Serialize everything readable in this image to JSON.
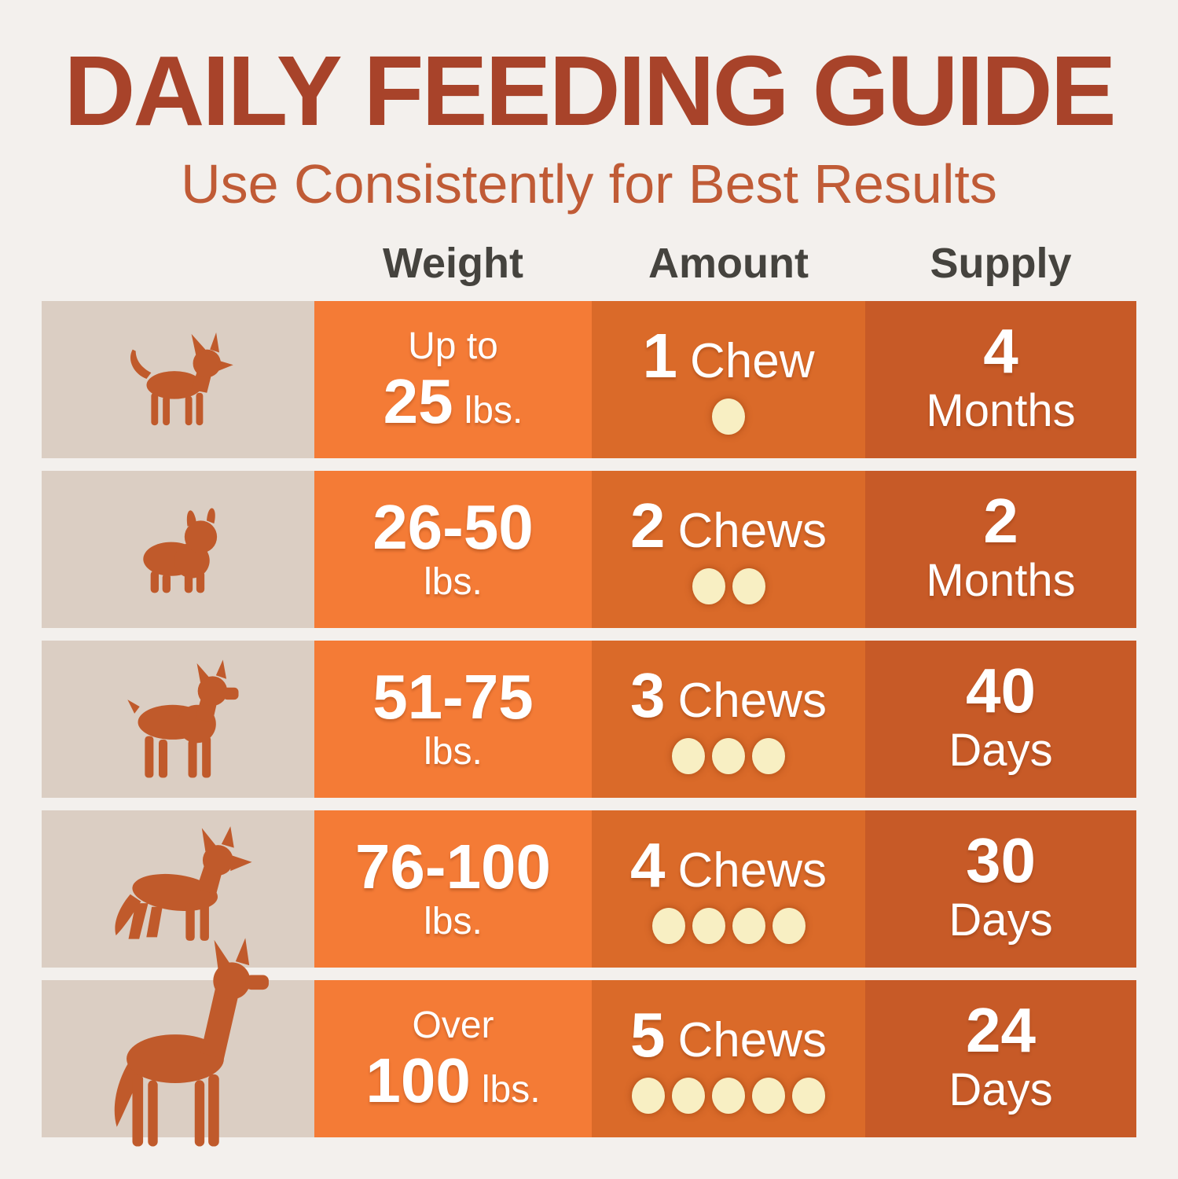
{
  "title": "DAILY FEEDING GUIDE",
  "subtitle": "Use Consistently for Best Results",
  "columns": {
    "weight": "Weight",
    "amount": "Amount",
    "supply": "Supply"
  },
  "rows": [
    {
      "dog": "chihuahua",
      "weight": {
        "pre": "Up to",
        "big": "25",
        "post": "lbs."
      },
      "amount": {
        "count": "1",
        "unit": "Chew",
        "dots": 1
      },
      "supply": {
        "value": "4",
        "unit": "Months"
      }
    },
    {
      "dog": "french-bulldog",
      "weight": {
        "big": "26-50",
        "post": "lbs."
      },
      "amount": {
        "count": "2",
        "unit": "Chews",
        "dots": 2
      },
      "supply": {
        "value": "2",
        "unit": "Months"
      }
    },
    {
      "dog": "boxer",
      "weight": {
        "big": "51-75",
        "post": "lbs."
      },
      "amount": {
        "count": "3",
        "unit": "Chews",
        "dots": 3
      },
      "supply": {
        "value": "40",
        "unit": "Days"
      }
    },
    {
      "dog": "german-shepherd",
      "weight": {
        "big": "76-100",
        "post": "lbs."
      },
      "amount": {
        "count": "4",
        "unit": "Chews",
        "dots": 4
      },
      "supply": {
        "value": "30",
        "unit": "Days"
      }
    },
    {
      "dog": "great-dane",
      "weight": {
        "pre": "Over",
        "big": "100",
        "post": "lbs."
      },
      "amount": {
        "count": "5",
        "unit": "Chews",
        "dots": 5
      },
      "supply": {
        "value": "24",
        "unit": "Days"
      }
    }
  ],
  "colors": {
    "page_bg": "#F3F0ED",
    "title": "#A8432A",
    "subtitle": "#C05B36",
    "header_text": "#45433E",
    "dog_cell_bg": "#DBCEC3",
    "dog": "#C05A2B",
    "weight_col": "#F47B36",
    "amount_col": "#DA6A29",
    "supply_col": "#C75A27",
    "dot": "#F8EFC3",
    "cell_text": "#FFFFFF"
  },
  "chart_data": {
    "type": "table",
    "title": "DAILY FEEDING GUIDE",
    "subtitle": "Use Consistently for Best Results",
    "columns": [
      "Weight",
      "Amount",
      "Supply"
    ],
    "rows": [
      {
        "dog": "chihuahua",
        "weight": "Up to 25 lbs.",
        "amount_chews": 1,
        "amount_label": "1 Chew",
        "supply": "4 Months"
      },
      {
        "dog": "french-bulldog",
        "weight": "26-50 lbs.",
        "amount_chews": 2,
        "amount_label": "2 Chews",
        "supply": "2 Months"
      },
      {
        "dog": "boxer",
        "weight": "51-75 lbs.",
        "amount_chews": 3,
        "amount_label": "3 Chews",
        "supply": "40 Days"
      },
      {
        "dog": "german-shepherd",
        "weight": "76-100 lbs.",
        "amount_chews": 4,
        "amount_label": "4 Chews",
        "supply": "30 Days"
      },
      {
        "dog": "great-dane",
        "weight": "Over 100 lbs.",
        "amount_chews": 5,
        "amount_label": "5 Chews",
        "supply": "24 Days"
      }
    ]
  }
}
